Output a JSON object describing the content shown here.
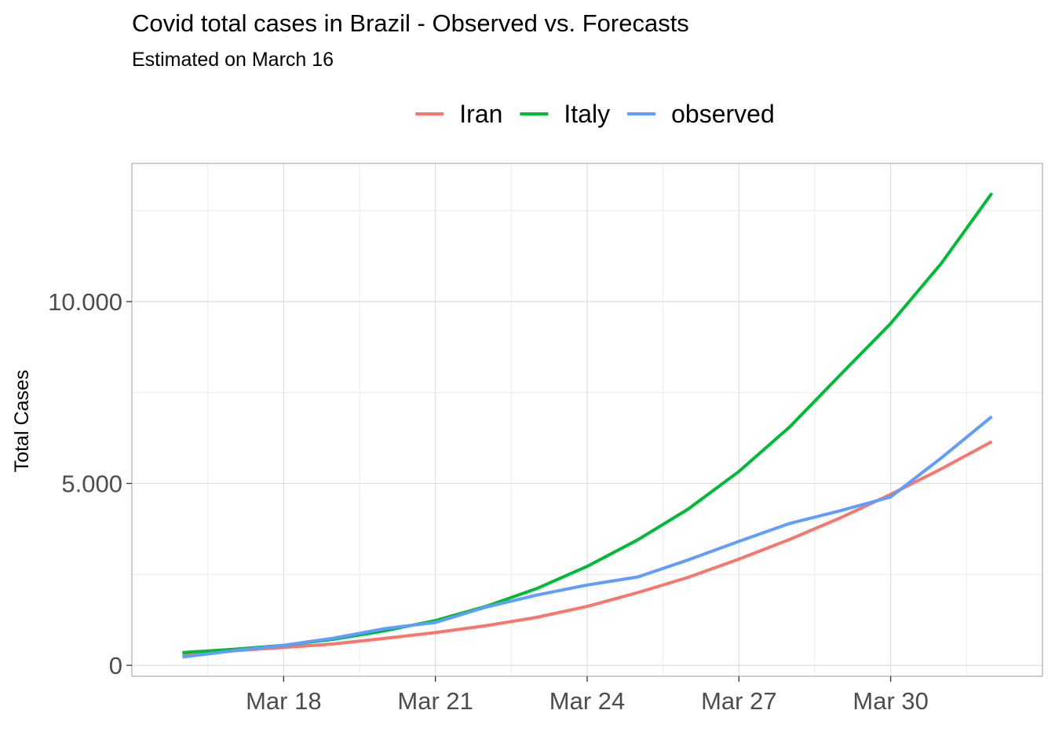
{
  "chart_data": {
    "type": "line",
    "title": "Covid total cases in Brazil - Observed vs. Forecasts",
    "subtitle": "Estimated on March 16",
    "xlabel": "",
    "ylabel": "Total Cases",
    "x": [
      "2020-03-16",
      "2020-03-17",
      "2020-03-18",
      "2020-03-19",
      "2020-03-20",
      "2020-03-21",
      "2020-03-22",
      "2020-03-23",
      "2020-03-24",
      "2020-03-25",
      "2020-03-26",
      "2020-03-27",
      "2020-03-28",
      "2020-03-29",
      "2020-03-30",
      "2020-03-31",
      "2020-04-01"
    ],
    "x_tick_labels": [
      "Mar 18",
      "Mar 21",
      "Mar 24",
      "Mar 27",
      "Mar 30"
    ],
    "x_ticks": [
      "2020-03-18",
      "2020-03-21",
      "2020-03-24",
      "2020-03-27",
      "2020-03-30"
    ],
    "y_tick_labels": [
      "0",
      "5.000",
      "10.000"
    ],
    "y_ticks": [
      0,
      5000,
      10000
    ],
    "ylim": [
      -300,
      13800
    ],
    "xlim": [
      "2020-03-15",
      "2020-04-02"
    ],
    "grid": true,
    "legend_position": "top",
    "series": [
      {
        "name": "Iran",
        "color": "#F8766D",
        "values": [
          310,
          400,
          490,
          590,
          740,
          900,
          1090,
          1320,
          1620,
          2000,
          2420,
          2920,
          3460,
          4050,
          4700,
          5400,
          6150
        ]
      },
      {
        "name": "Italy",
        "color": "#00BA38",
        "values": [
          350,
          440,
          550,
          720,
          950,
          1230,
          1620,
          2110,
          2720,
          3450,
          4300,
          5330,
          6550,
          7980,
          9400,
          11050,
          12980
        ]
      },
      {
        "name": "observed",
        "color": "#619CFF",
        "values": [
          230,
          400,
          550,
          750,
          1010,
          1180,
          1600,
          1930,
          2210,
          2430,
          2900,
          3410,
          3900,
          4250,
          4630,
          5700,
          6840
        ]
      }
    ]
  }
}
